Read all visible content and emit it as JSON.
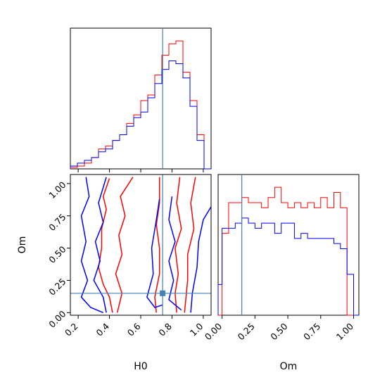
{
  "chart_data": {
    "type": "corner",
    "parameters": [
      "H0",
      "Om"
    ],
    "truth": {
      "H0": 0.74,
      "Om": 0.15
    },
    "truth_color": "#4682b4",
    "series_colors": [
      "#ff0000",
      "#0000ff"
    ],
    "panels": [
      {
        "panel": "H0-marginal",
        "type": "histogram",
        "xlim": [
          0.15,
          1.05
        ],
        "bin_edges": [
          0.15,
          0.195,
          0.24,
          0.285,
          0.33,
          0.375,
          0.42,
          0.465,
          0.51,
          0.555,
          0.6,
          0.645,
          0.69,
          0.735,
          0.78,
          0.825,
          0.87,
          0.915,
          0.96,
          1.005,
          1.05
        ],
        "series": [
          {
            "color": "#ff0000",
            "counts": [
              0.5,
              1,
              2,
              4,
              7,
              8,
              10,
              12,
              16,
              19,
              24,
              26,
              33,
              40,
              44,
              45,
              34,
              24,
              12,
              0
            ]
          },
          {
            "color": "#0000ff",
            "counts": [
              1,
              2,
              3,
              4,
              6,
              7,
              10,
              12,
              15,
              18,
              20,
              25,
              30,
              35,
              38,
              37,
              32,
              22,
              10,
              0
            ]
          }
        ]
      },
      {
        "panel": "Om-marginal",
        "type": "histogram",
        "xlim": [
          -0.03,
          1.04
        ],
        "bin_edges": [
          -0.03,
          0.0,
          0.05,
          0.1,
          0.15,
          0.2,
          0.25,
          0.3,
          0.35,
          0.4,
          0.45,
          0.5,
          0.55,
          0.6,
          0.65,
          0.7,
          0.75,
          0.8,
          0.85,
          0.9,
          0.95,
          1.0,
          1.04
        ],
        "series": [
          {
            "color": "#ff0000",
            "counts": [
              0,
              16,
              22,
              22,
              23,
              22,
              22,
              21,
              23,
              25,
              22,
              21,
              22,
              21,
              22,
              21,
              23,
              21,
              24,
              21,
              0,
              0
            ]
          },
          {
            "color": "#0000ff",
            "counts": [
              6,
              17,
              17,
              18,
              19,
              18,
              17,
              18,
              18,
              16,
              18,
              18,
              15,
              16,
              15,
              15,
              15,
              15,
              14,
              13,
              8,
              0
            ]
          }
        ]
      },
      {
        "panel": "H0-Om",
        "type": "contour",
        "xlim": [
          0.15,
          1.05
        ],
        "ylim": [
          -0.02,
          1.07
        ],
        "contours": [
          {
            "color": "#ff0000",
            "points": [
              [
                0.4,
                1.04
              ],
              [
                0.36,
                0.9
              ],
              [
                0.38,
                0.8
              ],
              [
                0.35,
                0.65
              ],
              [
                0.35,
                0.5
              ],
              [
                0.33,
                0.35
              ],
              [
                0.36,
                0.22
              ],
              [
                0.4,
                0.12
              ],
              [
                0.42,
                0.0
              ]
            ]
          },
          {
            "color": "#ff0000",
            "points": [
              [
                0.55,
                1.05
              ],
              [
                0.47,
                0.9
              ],
              [
                0.5,
                0.75
              ],
              [
                0.46,
                0.6
              ],
              [
                0.48,
                0.45
              ],
              [
                0.44,
                0.3
              ],
              [
                0.48,
                0.15
              ],
              [
                0.45,
                0.0
              ]
            ]
          },
          {
            "color": "#ff0000",
            "points": [
              [
                0.72,
                1.05
              ],
              [
                0.72,
                0.85
              ],
              [
                0.7,
                0.68
              ],
              [
                0.72,
                0.5
              ],
              [
                0.72,
                0.3
              ],
              [
                0.69,
                0.12
              ],
              [
                0.7,
                0.0
              ]
            ]
          },
          {
            "color": "#ff0000",
            "points": [
              [
                0.85,
                1.05
              ],
              [
                0.83,
                0.85
              ],
              [
                0.86,
                0.65
              ],
              [
                0.82,
                0.5
              ],
              [
                0.84,
                0.3
              ],
              [
                0.82,
                0.15
              ],
              [
                0.83,
                0.0
              ]
            ]
          },
          {
            "color": "#ff0000",
            "points": [
              [
                0.95,
                1.05
              ],
              [
                0.92,
                0.85
              ],
              [
                0.94,
                0.65
              ],
              [
                0.9,
                0.45
              ],
              [
                0.9,
                0.25
              ],
              [
                0.88,
                0.0
              ]
            ]
          },
          {
            "color": "#0000ff",
            "points": [
              [
                0.25,
                1.05
              ],
              [
                0.27,
                0.9
              ],
              [
                0.22,
                0.75
              ],
              [
                0.25,
                0.55
              ],
              [
                0.22,
                0.4
              ],
              [
                0.26,
                0.25
              ],
              [
                0.22,
                0.12
              ],
              [
                0.28,
                0.04
              ],
              [
                0.36,
                0.0
              ]
            ]
          },
          {
            "color": "#0000ff",
            "points": [
              [
                0.38,
                1.05
              ],
              [
                0.33,
                0.85
              ],
              [
                0.36,
                0.7
              ],
              [
                0.31,
                0.55
              ],
              [
                0.34,
                0.4
              ],
              [
                0.3,
                0.25
              ],
              [
                0.36,
                0.12
              ],
              [
                0.38,
                0.0
              ]
            ]
          },
          {
            "color": "#0000ff",
            "points": [
              [
                0.72,
                0.88
              ],
              [
                0.7,
                0.72
              ],
              [
                0.67,
                0.5
              ],
              [
                0.68,
                0.3
              ],
              [
                0.64,
                0.12
              ],
              [
                0.69,
                0.04
              ],
              [
                0.74,
                0.06
              ]
            ]
          },
          {
            "color": "#0000ff",
            "points": [
              [
                0.8,
                0.9
              ],
              [
                0.78,
                0.72
              ],
              [
                0.82,
                0.55
              ],
              [
                0.78,
                0.4
              ],
              [
                0.81,
                0.25
              ],
              [
                0.78,
                0.1
              ],
              [
                0.86,
                0.02
              ]
            ]
          },
          {
            "color": "#0000ff",
            "points": [
              [
                1.05,
                0.82
              ],
              [
                1.0,
                0.72
              ],
              [
                0.97,
                0.55
              ],
              [
                0.96,
                0.35
              ],
              [
                0.93,
                0.15
              ],
              [
                0.92,
                0.0
              ]
            ]
          }
        ]
      }
    ],
    "axes": {
      "H0": {
        "label": "H0",
        "ticks": [
          0.2,
          0.4,
          0.6,
          0.8,
          1.0
        ],
        "tick_labels": [
          "0.2",
          "0.4",
          "0.6",
          "0.8",
          "1.0"
        ]
      },
      "Om_x": {
        "label": "Om",
        "ticks": [
          0.0,
          0.25,
          0.5,
          0.75,
          1.0
        ],
        "tick_labels": [
          "0.00",
          "0.25",
          "0.50",
          "0.75",
          "1.00"
        ]
      },
      "Om_y": {
        "label": "Om",
        "ticks": [
          0.0,
          0.25,
          0.5,
          0.75,
          1.0
        ],
        "tick_labels": [
          "0.00",
          "0.25",
          "0.50",
          "0.75",
          "1.00"
        ]
      }
    },
    "grid": false,
    "legend": "none"
  }
}
